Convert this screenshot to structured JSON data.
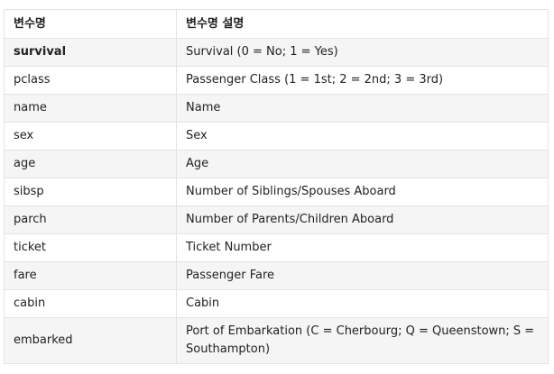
{
  "table": {
    "headers": [
      "변수명",
      "변수명 설명"
    ],
    "rows": [
      {
        "name": "survival",
        "desc": "Survival (0 = No; 1 = Yes)",
        "bold": true
      },
      {
        "name": "pclass",
        "desc": "Passenger Class (1 = 1st; 2 = 2nd; 3 = 3rd)"
      },
      {
        "name": "name",
        "desc": "Name"
      },
      {
        "name": "sex",
        "desc": "Sex"
      },
      {
        "name": "age",
        "desc": "Age"
      },
      {
        "name": "sibsp",
        "desc": "Number of Siblings/Spouses Aboard"
      },
      {
        "name": "parch",
        "desc": "Number of Parents/Children Aboard"
      },
      {
        "name": "ticket",
        "desc": "Ticket Number"
      },
      {
        "name": "fare",
        "desc": "Passenger Fare"
      },
      {
        "name": "cabin",
        "desc": "Cabin"
      },
      {
        "name": "embarked",
        "desc": "Port of Embarkation (C = Cherbourg; Q = Queenstown; S = Southampton)"
      }
    ]
  },
  "colors": {
    "border": "#e3e3e3",
    "stripe": "#f5f5f5",
    "text": "#222222"
  }
}
